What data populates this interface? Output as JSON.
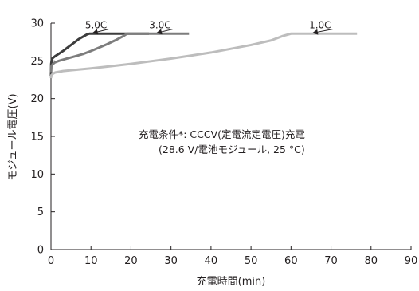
{
  "chart_data": {
    "type": "line",
    "xlabel": "充電時間(min)",
    "ylabel": "モジュール電圧(V)",
    "xlim": [
      0,
      90
    ],
    "ylim": [
      0,
      30
    ],
    "xticks": [
      0,
      10,
      20,
      30,
      40,
      50,
      60,
      70,
      80,
      90
    ],
    "yticks": [
      0,
      5,
      10,
      15,
      20,
      25,
      30
    ],
    "grid": false,
    "legend": "labels near curves with arrows",
    "series": [
      {
        "name": "5.0C",
        "color": "#3d3d3d",
        "x": [
          0,
          0.05,
          0.2,
          0.5,
          1,
          2,
          3,
          4,
          5,
          6,
          7,
          8,
          9,
          9.6,
          10,
          15,
          20,
          24.5
        ],
        "y": [
          23.0,
          24.6,
          25.2,
          25.4,
          25.6,
          25.95,
          26.3,
          26.7,
          27.1,
          27.5,
          27.9,
          28.2,
          28.5,
          28.6,
          28.6,
          28.6,
          28.6,
          28.6
        ]
      },
      {
        "name": "3.0C",
        "color": "#7d7d7d",
        "x": [
          0,
          0.1,
          0.5,
          1,
          2,
          4,
          6,
          8,
          10,
          12,
          14,
          16,
          18,
          19,
          20,
          25,
          30,
          34.5
        ],
        "y": [
          23.5,
          24.3,
          24.6,
          24.8,
          25.0,
          25.3,
          25.6,
          25.9,
          26.3,
          26.75,
          27.2,
          27.7,
          28.25,
          28.6,
          28.6,
          28.6,
          28.6,
          28.6
        ]
      },
      {
        "name": "1.0C",
        "color": "#bdbdbd",
        "x": [
          0,
          0.1,
          0.5,
          1,
          3,
          5,
          10,
          15,
          20,
          25,
          30,
          35,
          40,
          45,
          50,
          55,
          58,
          60,
          65,
          70,
          76.5
        ],
        "y": [
          22.7,
          23.1,
          23.3,
          23.45,
          23.65,
          23.75,
          24.0,
          24.3,
          24.6,
          24.95,
          25.3,
          25.7,
          26.1,
          26.6,
          27.1,
          27.7,
          28.3,
          28.6,
          28.6,
          28.6,
          28.6
        ]
      }
    ],
    "series_labels": [
      {
        "text": "5.0C",
        "label_x": 14,
        "label_y": 29.3,
        "arrow_to_x": 10.5,
        "arrow_to_y": 28.7
      },
      {
        "text": "3.0C",
        "label_x": 30,
        "label_y": 29.3,
        "arrow_to_x": 26.5,
        "arrow_to_y": 28.7
      },
      {
        "text": "1.0C",
        "label_x": 70,
        "label_y": 29.3,
        "arrow_to_x": 65.5,
        "arrow_to_y": 28.7
      }
    ],
    "annotation": {
      "line1": "充電条件*: CCCV(定電流定電圧)充電",
      "line2": "(28.6 V/電池モジュール, 25 °C)"
    }
  }
}
